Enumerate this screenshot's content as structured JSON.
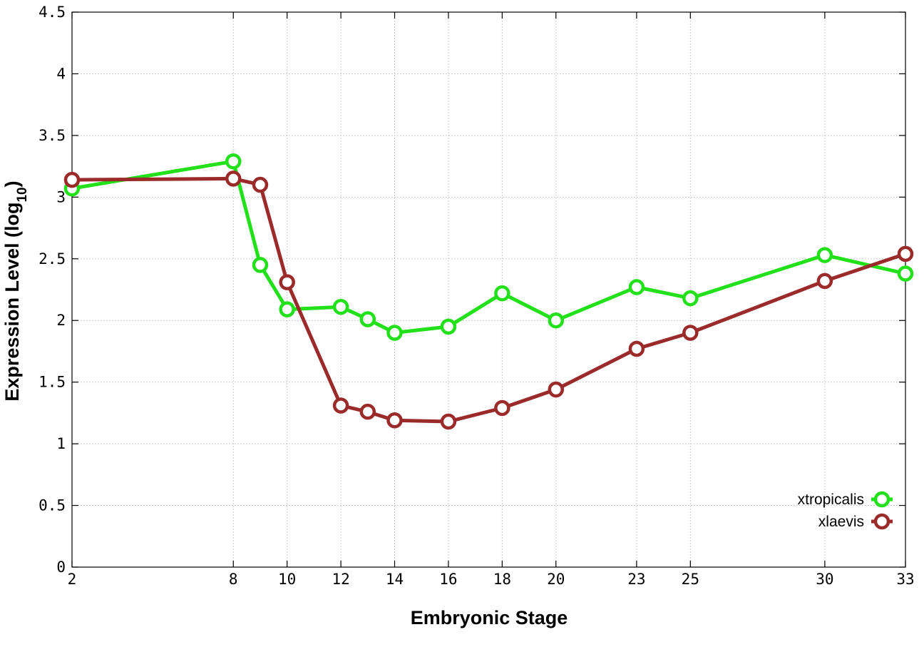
{
  "chart_data": {
    "type": "line",
    "xlabel": "Embryonic Stage",
    "ylabel": "Expression Level (log",
    "ylabel_sub": "10",
    "ylabel_close": ")",
    "xlim": [
      2,
      33
    ],
    "ylim": [
      0,
      4.5
    ],
    "x_ticks": [
      2,
      8,
      10,
      12,
      14,
      16,
      18,
      20,
      23,
      25,
      30,
      33
    ],
    "x_tick_labels": [
      "2",
      "8",
      "10",
      "12",
      "14",
      "16",
      "18",
      "20",
      "23",
      "25",
      "30",
      "33"
    ],
    "y_ticks": [
      0,
      0.5,
      1,
      1.5,
      2,
      2.5,
      3,
      3.5,
      4,
      4.5
    ],
    "y_tick_labels": [
      "0",
      "0.5",
      "1",
      "1.5",
      "2",
      "2.5",
      "3",
      "3.5",
      "4",
      "4.5"
    ],
    "grid": true,
    "legend_position": "bottom-right",
    "x": [
      2,
      8,
      9,
      10,
      12,
      13,
      14,
      16,
      18,
      20,
      23,
      25,
      30,
      33
    ],
    "series": [
      {
        "name": "xtropicalis",
        "color": "#22e01a",
        "values": [
          3.07,
          3.29,
          2.45,
          2.09,
          2.11,
          2.01,
          1.9,
          1.95,
          2.22,
          2.0,
          2.27,
          2.18,
          2.53,
          2.38
        ]
      },
      {
        "name": "xlaevis",
        "color": "#9b2b2b",
        "values": [
          3.14,
          3.15,
          3.1,
          2.31,
          1.31,
          1.26,
          1.19,
          1.18,
          1.29,
          1.44,
          1.77,
          1.9,
          2.32,
          2.54
        ]
      }
    ]
  }
}
